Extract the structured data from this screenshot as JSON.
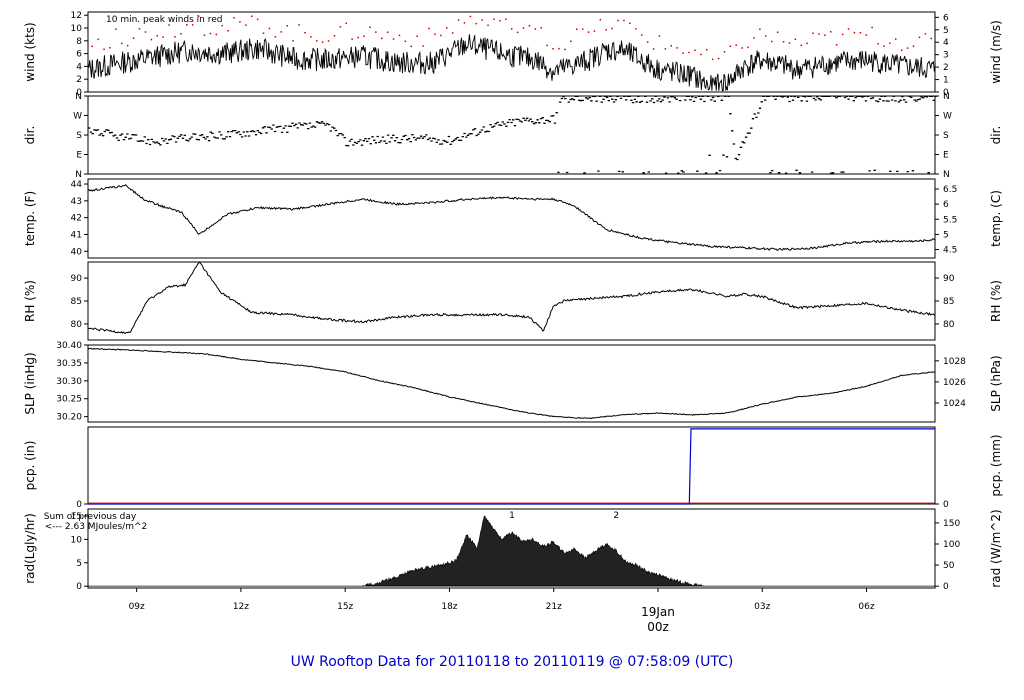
{
  "title": "UW Rooftop Data for 20110118  to  20110119 @ 07:58:09  (UTC)",
  "chart_data": {
    "type": "line",
    "x_range_hours": [
      7.6,
      31.97
    ],
    "x_ticks": [
      {
        "hour": 9,
        "label": "09z"
      },
      {
        "hour": 12,
        "label": "12z"
      },
      {
        "hour": 15,
        "label": "15z"
      },
      {
        "hour": 18,
        "label": "18z"
      },
      {
        "hour": 21,
        "label": "21z"
      },
      {
        "hour": 24,
        "label": "00z"
      },
      {
        "hour": 27,
        "label": "03z"
      },
      {
        "hour": 30,
        "label": "06z"
      }
    ],
    "date_label": "19Jan",
    "date_label_hour": 24,
    "panels": [
      {
        "id": "wind",
        "ylabel": "wind (kts)",
        "ylabel_right": "wind (m/s)",
        "ylim": [
          0,
          12.5
        ],
        "yticks": [
          "0",
          "2",
          "4",
          "6",
          "8",
          "10",
          "12"
        ],
        "right_ylim_units": [
          0,
          6.43
        ],
        "right_yticks": [
          "0",
          "1",
          "2",
          "3",
          "4",
          "5",
          "6"
        ],
        "annotation": "10 min. peak winds in red",
        "peak_color": "#cc0000",
        "series": [
          {
            "name": "wind speed",
            "color": "#000000",
            "x": [
              7.6,
              8.5,
              9.5,
              10.5,
              11.5,
              12.5,
              13.5,
              14.5,
              15.5,
              16.5,
              17.5,
              18.5,
              19.5,
              20.5,
              21,
              22,
              22.5,
              23,
              24,
              25,
              25.5,
              26,
              26.5,
              27,
              28,
              29,
              30,
              31,
              31.97
            ],
            "y": [
              3.5,
              4.5,
              5.5,
              6.5,
              6,
              6.8,
              5.2,
              5,
              5.6,
              4.6,
              4.5,
              7.5,
              6,
              5,
              3.2,
              5,
              6.5,
              6.5,
              3.5,
              2.5,
              0.8,
              1.5,
              4,
              5,
              3.5,
              4.5,
              5,
              4,
              3.5
            ]
          }
        ]
      },
      {
        "id": "dir",
        "ylabel": "dir.",
        "ylabel_right": "dir.",
        "ylim": [
          0,
          360
        ],
        "yticks": [
          "N",
          "E",
          "S",
          "W",
          "N"
        ],
        "right_yticks": [
          "N",
          "E",
          "S",
          "W",
          "N"
        ],
        "series": [
          {
            "name": "wind direction",
            "color": "#000000",
            "x": [
              7.6,
              8.5,
              9.5,
              10.5,
              11.5,
              12.5,
              13.5,
              14.5,
              15,
              16,
              17,
              18,
              19,
              20,
              21,
              21.2,
              22,
              23,
              24,
              25,
              25.5,
              26,
              26.2,
              27,
              28,
              29,
              30,
              31,
              31.97
            ],
            "y": [
              205,
              170,
              150,
              165,
              180,
              200,
              215,
              225,
              145,
              160,
              165,
              155,
              210,
              245,
              255,
              345,
              350,
              350,
              348,
              352,
              350,
              350,
              60,
              355,
              352,
              355,
              352,
              350,
              352
            ]
          }
        ]
      },
      {
        "id": "temp",
        "ylabel": "temp. (F)",
        "ylabel_right": "temp. (C)",
        "ylim": [
          39.6,
          44.3
        ],
        "yticks": [
          "40",
          "41",
          "42",
          "43",
          "44"
        ],
        "right_ylim_units": [
          4.22,
          6.83
        ],
        "right_yticks": [
          "4.5",
          "5",
          "5.5",
          "6",
          "6.5"
        ],
        "series": [
          {
            "name": "temperature",
            "color": "#000000",
            "x": [
              7.6,
              8.3,
              8.7,
              9.2,
              9.7,
              10.3,
              10.8,
              11.6,
              12.5,
              13.5,
              14.5,
              15.5,
              16.5,
              17.5,
              18.5,
              19.5,
              20.5,
              21,
              21.6,
              22.5,
              23.5,
              24.5,
              25.5,
              26.5,
              27.5,
              28.5,
              29.5,
              30.5,
              31.5,
              31.97
            ],
            "y": [
              43.6,
              43.8,
              43.9,
              43.1,
              42.7,
              42.3,
              41,
              42.2,
              42.6,
              42.5,
              42.8,
              43.1,
              42.8,
              42.9,
              43.1,
              43.2,
              43.1,
              43.1,
              42.7,
              41.3,
              40.8,
              40.5,
              40.3,
              40.2,
              40.1,
              40.2,
              40.5,
              40.6,
              40.6,
              40.7
            ]
          }
        ]
      },
      {
        "id": "rh",
        "ylabel": "RH (%)",
        "ylabel_right": "RH (%)",
        "ylim": [
          76.5,
          93.5
        ],
        "yticks": [
          "80",
          "85",
          "90"
        ],
        "right_yticks": [
          "80",
          "85",
          "90"
        ],
        "series": [
          {
            "name": "relative humidity",
            "color": "#000000",
            "x": [
              7.6,
              8.2,
              8.8,
              9.3,
              9.9,
              10.4,
              10.8,
              11.4,
              12.3,
              13.5,
              14.5,
              15.5,
              16.5,
              17.5,
              18.5,
              19.5,
              20.3,
              20.7,
              21,
              21.3,
              22,
              23,
              24,
              25,
              26,
              26.5,
              27,
              28,
              29,
              30,
              31,
              31.97
            ],
            "y": [
              79,
              78.5,
              78,
              85,
              88,
              88.5,
              93.5,
              87,
              82.5,
              82,
              81,
              80.5,
              81.5,
              82,
              82,
              82,
              81.5,
              78.5,
              84,
              85,
              85.5,
              86,
              87,
              87.5,
              86,
              86.5,
              86,
              83.5,
              84,
              84.5,
              83,
              82
            ]
          }
        ]
      },
      {
        "id": "slp",
        "ylabel": "SLP (inHg)",
        "ylabel_right": "SLP (hPa)",
        "ylim": [
          30.185,
          30.4
        ],
        "yticks": [
          "30.20",
          "30.25",
          "30.30",
          "30.35",
          "30.40"
        ],
        "right_ylim_units": [
          1022.2,
          1029.5
        ],
        "right_yticks": [
          "1024",
          "1026",
          "1028"
        ],
        "series": [
          {
            "name": "sea level pressure",
            "color": "#000000",
            "x": [
              7.6,
              9,
              10,
              11,
              12,
              13,
              14,
              15,
              16,
              17,
              18,
              19,
              20,
              21,
              22,
              23,
              24,
              25,
              26,
              27,
              28,
              29,
              30,
              31,
              31.97
            ],
            "y": [
              30.39,
              30.385,
              30.38,
              30.375,
              30.36,
              30.35,
              30.34,
              30.325,
              30.3,
              30.28,
              30.255,
              30.235,
              30.215,
              30.2,
              30.195,
              30.205,
              30.21,
              30.205,
              30.21,
              30.235,
              30.255,
              30.265,
              30.285,
              30.315,
              30.325
            ]
          }
        ]
      },
      {
        "id": "pcp",
        "ylabel": "pcp. (in)",
        "ylabel_right": "pcp. (mm)",
        "ylim": [
          0,
          0.02
        ],
        "yticks": [
          "0"
        ],
        "right_yticks": [
          "0"
        ],
        "series": [
          {
            "name": "precipitation",
            "color": "#0000cc",
            "x": [
              7.6,
              24.9,
              24.95,
              31.97
            ],
            "y": [
              0,
              0,
              0.0195,
              0.0195
            ]
          }
        ]
      },
      {
        "id": "rad",
        "ylabel": "rad(Lgly/hr)",
        "ylabel_right": "rad (W/m^2)",
        "ylim": [
          -0.4,
          16.5
        ],
        "yticks": [
          "0",
          "5",
          "10",
          "15"
        ],
        "right_ylim_units": [
          -4.4,
          183
        ],
        "right_yticks": [
          "0",
          "50",
          "100",
          "150"
        ],
        "annotation_line1": "Sum of previous day",
        "annotation_line2": "<--- 2.63 MJoules/m^2",
        "annotation_color": "#9900cc",
        "cloud_marks": [
          {
            "hour": 19.8,
            "label": "1"
          },
          {
            "hour": 22.8,
            "label": "2"
          }
        ],
        "series": [
          {
            "name": "solar radiation",
            "color": "#111111",
            "x": [
              15.5,
              16,
              16.5,
              17,
              17.5,
              17.8,
              18.2,
              18.5,
              18.8,
              19,
              19.2,
              19.5,
              19.8,
              20.1,
              20.4,
              20.7,
              21,
              21.3,
              21.6,
              21.9,
              22.2,
              22.5,
              22.8,
              23.1,
              23.4,
              23.7,
              24,
              24.3,
              24.6,
              25,
              25.3
            ],
            "y": [
              0,
              0.8,
              2,
              3.5,
              4.2,
              4.5,
              5.5,
              11,
              8,
              15,
              13,
              10,
              11.5,
              9.5,
              10,
              8.5,
              9.5,
              7,
              8,
              6,
              7.5,
              9,
              7.5,
              5,
              4.5,
              3,
              2.5,
              1.5,
              1,
              0.3,
              0
            ]
          }
        ]
      }
    ]
  }
}
